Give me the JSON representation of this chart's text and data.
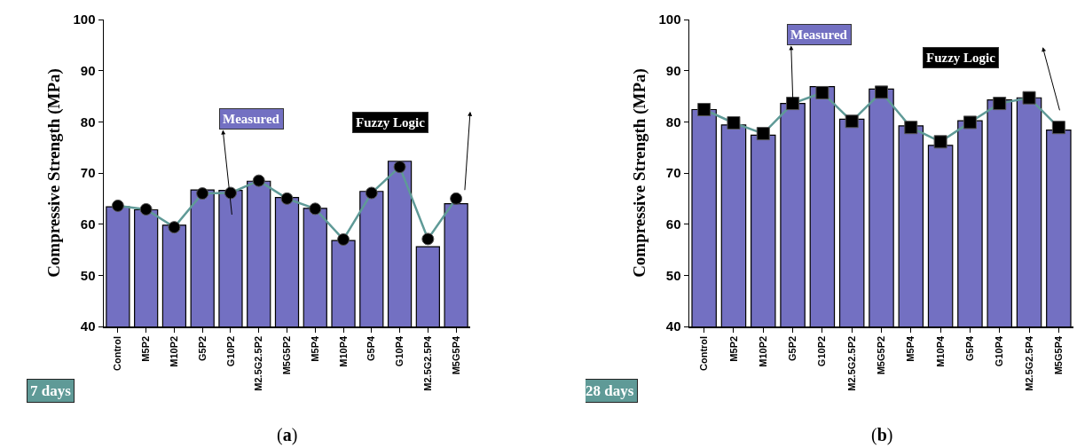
{
  "chart_data": [
    {
      "type": "bar",
      "ylabel": "Compressive Strength (MPa)",
      "categories": [
        "Control",
        "M5P2",
        "M10P2",
        "G5P2",
        "G10P2",
        "M2.5G2.5P2",
        "M5G5P2",
        "M5P4",
        "M10P4",
        "G5P4",
        "G10P4",
        "M2.5G2.5P4",
        "M5G5P4"
      ],
      "series": [
        {
          "name": "Measured",
          "type": "bar",
          "color": "#7370c2",
          "values": [
            63.4,
            62.8,
            59.8,
            66.7,
            66.6,
            68.4,
            65.2,
            63.1,
            56.8,
            66.4,
            72.3,
            55.6,
            64.0
          ]
        },
        {
          "name": "Fuzzy Logic",
          "type": "line",
          "color": "#5f9a97",
          "marker": "circle",
          "values": [
            63.6,
            62.9,
            59.4,
            66.0,
            66.1,
            68.5,
            65.0,
            63.0,
            57.0,
            66.1,
            71.2,
            57.1,
            65.0
          ]
        }
      ],
      "ylim": [
        40,
        100
      ],
      "yticks": [
        40,
        50,
        60,
        70,
        80,
        90,
        100
      ],
      "grid": false,
      "legend": "top",
      "line_style": "solid",
      "annotations": [
        "7 days",
        "(a)"
      ]
    },
    {
      "type": "bar",
      "ylabel": "Compressive Strength (MPa)",
      "categories": [
        "Control",
        "M5P2",
        "M10P2",
        "G5P2",
        "G10P2",
        "M2.5G2.5P2",
        "M5G5P2",
        "M5P4",
        "M10P4",
        "G5P4",
        "G10P4",
        "M2.5G2.5P4",
        "M5G5P4"
      ],
      "series": [
        {
          "name": "Measured",
          "type": "bar",
          "color": "#7370c2",
          "values": [
            82.4,
            79.4,
            77.4,
            83.6,
            86.9,
            80.5,
            86.4,
            79.2,
            75.4,
            80.2,
            84.3,
            84.7,
            78.4
          ]
        },
        {
          "name": "Fuzzy Logic",
          "type": "line",
          "color": "#5f9a97",
          "marker": "square",
          "values": [
            82.4,
            79.8,
            77.7,
            83.6,
            85.7,
            80.1,
            85.8,
            78.9,
            76.1,
            79.9,
            83.6,
            84.7,
            78.9
          ]
        }
      ],
      "ylim": [
        40,
        100
      ],
      "yticks": [
        40,
        50,
        60,
        70,
        80,
        90,
        100
      ],
      "grid": false,
      "legend": "top",
      "line_style": "solid",
      "annotations": [
        "28 days",
        "(b)"
      ]
    }
  ]
}
